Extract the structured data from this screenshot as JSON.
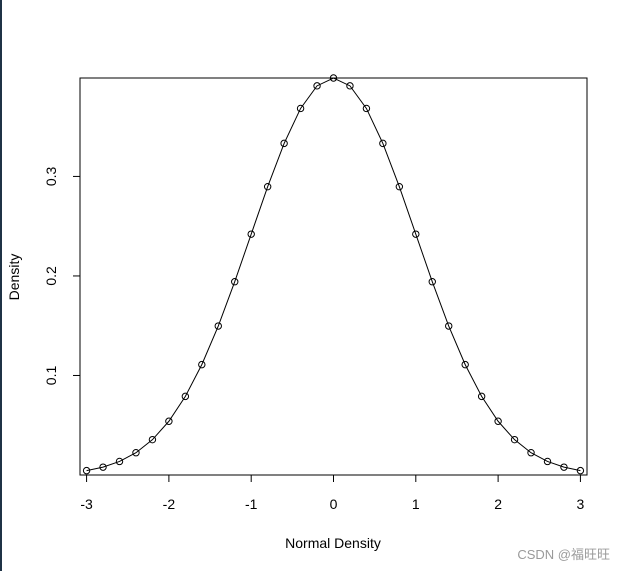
{
  "chart_data": {
    "type": "line",
    "title": "",
    "xlabel": "Normal Density",
    "ylabel": "Density",
    "xlim": [
      -3.08,
      3.08
    ],
    "ylim": [
      0.0,
      0.3989
    ],
    "x_ticks": [
      -3,
      -2,
      -1,
      0,
      1,
      2,
      3
    ],
    "x_tick_labels": [
      "-3",
      "-2",
      "-1",
      "0",
      "1",
      "2",
      "3"
    ],
    "y_ticks": [
      0.1,
      0.2,
      0.3
    ],
    "y_tick_labels": [
      "0.1",
      "0.2",
      "0.3"
    ],
    "grid": false,
    "series": [
      {
        "x": [
          -3.0,
          -2.8,
          -2.6,
          -2.4,
          -2.2,
          -2.0,
          -1.8,
          -1.6,
          -1.4,
          -1.2,
          -1.0,
          -0.8,
          -0.6,
          -0.4,
          -0.2,
          0.0,
          0.2,
          0.4,
          0.6,
          0.8,
          1.0,
          1.2,
          1.4,
          1.6,
          1.8,
          2.0,
          2.2,
          2.4,
          2.6,
          2.8,
          3.0
        ],
        "y": [
          0.0044,
          0.0079,
          0.0136,
          0.0224,
          0.0355,
          0.054,
          0.079,
          0.1109,
          0.1497,
          0.1942,
          0.242,
          0.2897,
          0.3332,
          0.3683,
          0.391,
          0.3989,
          0.391,
          0.3683,
          0.3332,
          0.2897,
          0.242,
          0.1942,
          0.1497,
          0.1109,
          0.079,
          0.054,
          0.0355,
          0.0224,
          0.0136,
          0.0079,
          0.0044
        ],
        "markers": "open-circle",
        "color": "#000000"
      }
    ]
  },
  "watermark": "CSDN @福旺旺"
}
